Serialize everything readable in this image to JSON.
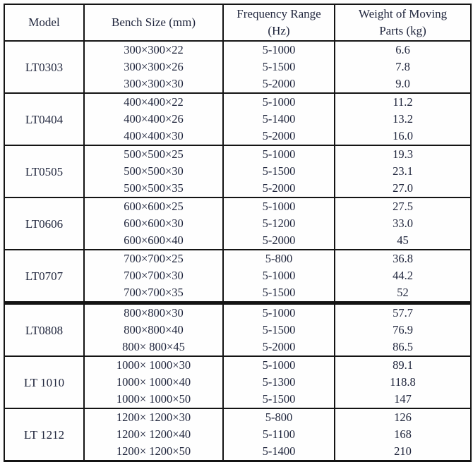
{
  "table": {
    "headers": [
      "Model",
      "Bench Size (mm)",
      "Frequency Range (Hz)",
      "Weight of Moving Parts (kg)"
    ],
    "groups": [
      {
        "model": "LT0303",
        "thick_bottom": false,
        "rows": [
          [
            "300×300×22",
            "5-1000",
            "6.6"
          ],
          [
            "300×300×26",
            "5-1500",
            "7.8"
          ],
          [
            "300×300×30",
            "5-2000",
            "9.0"
          ]
        ]
      },
      {
        "model": "LT0404",
        "thick_bottom": false,
        "rows": [
          [
            "400×400×22",
            "5-1000",
            "11.2"
          ],
          [
            "400×400×26",
            "5-1400",
            "13.2"
          ],
          [
            "400×400×30",
            "5-2000",
            "16.0"
          ]
        ]
      },
      {
        "model": "LT0505",
        "thick_bottom": false,
        "rows": [
          [
            "500×500×25",
            "5-1000",
            "19.3"
          ],
          [
            "500×500×30",
            "5-1500",
            "23.1"
          ],
          [
            "500×500×35",
            "5-2000",
            "27.0"
          ]
        ]
      },
      {
        "model": "LT0606",
        "thick_bottom": false,
        "rows": [
          [
            "600×600×25",
            "5-1000",
            "27.5"
          ],
          [
            "600×600×30",
            "5-1200",
            "33.0"
          ],
          [
            "600×600×40",
            "5-2000",
            "45"
          ]
        ]
      },
      {
        "model": "LT0707",
        "thick_bottom": true,
        "rows": [
          [
            "700×700×25",
            "5-800",
            "36.8"
          ],
          [
            "700×700×30",
            "5-1000",
            "44.2"
          ],
          [
            "700×700×35",
            "5-1500",
            "52"
          ]
        ]
      },
      {
        "model": "LT0808",
        "thick_bottom": false,
        "rows": [
          [
            "800×800×30",
            "5-1000",
            "57.7"
          ],
          [
            "800×800×40",
            "5-1500",
            "76.9"
          ],
          [
            "800× 800×45",
            "5-2000",
            "86.5"
          ]
        ]
      },
      {
        "model": "LT 1010",
        "thick_bottom": false,
        "rows": [
          [
            "1000× 1000×30",
            "5-1000",
            "89.1"
          ],
          [
            "1000× 1000×40",
            "5-1300",
            "118.8"
          ],
          [
            "1000× 1000×50",
            "5-1500",
            "147"
          ]
        ]
      },
      {
        "model": "LT 1212",
        "thick_bottom": false,
        "rows": [
          [
            "1200× 1200×30",
            "5-800",
            "126"
          ],
          [
            "1200× 1200×40",
            "5-1100",
            "168"
          ],
          [
            "1200× 1200×50",
            "5-1400",
            "210"
          ]
        ]
      }
    ]
  },
  "colors": {
    "border": "#141414",
    "text": "#20263d",
    "background": "#fdfdfd"
  }
}
